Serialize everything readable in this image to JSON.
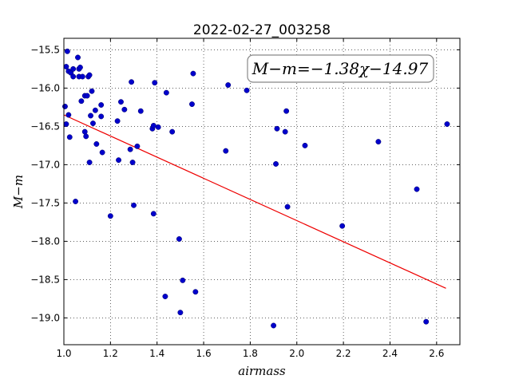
{
  "chart_data": {
    "type": "scatter",
    "title": "2022-02-27_003258",
    "xlabel": "airmass",
    "ylabel": "M−m",
    "xlim": [
      1.0,
      2.7
    ],
    "ylim": [
      -15.35,
      -19.35
    ],
    "y_inverted": true,
    "grid": true,
    "x_ticks": [
      "1.0",
      "1.2",
      "1.4",
      "1.6",
      "1.8",
      "2.0",
      "2.2",
      "2.4",
      "2.6"
    ],
    "y_ticks": [
      "−15.5",
      "−16.0",
      "−16.5",
      "−17.0",
      "−17.5",
      "−18.0",
      "−18.5",
      "−19.0"
    ],
    "annotation": "M−m=−1.38χ−14.97",
    "marker_color": "#0000cc",
    "fit_color": "#ee0000",
    "fit": {
      "slope": -1.38,
      "intercept": -14.97,
      "x_range": [
        1.0,
        2.64
      ]
    },
    "points": [
      {
        "x": 1.005,
        "y": -16.24
      },
      {
        "x": 1.01,
        "y": -16.47
      },
      {
        "x": 1.01,
        "y": -15.72
      },
      {
        "x": 1.015,
        "y": -15.52
      },
      {
        "x": 1.02,
        "y": -16.35
      },
      {
        "x": 1.02,
        "y": -15.78
      },
      {
        "x": 1.025,
        "y": -16.64
      },
      {
        "x": 1.03,
        "y": -15.8
      },
      {
        "x": 1.04,
        "y": -15.75
      },
      {
        "x": 1.04,
        "y": -15.85
      },
      {
        "x": 1.05,
        "y": -17.48
      },
      {
        "x": 1.06,
        "y": -15.6
      },
      {
        "x": 1.065,
        "y": -15.75
      },
      {
        "x": 1.065,
        "y": -15.85
      },
      {
        "x": 1.07,
        "y": -15.73
      },
      {
        "x": 1.075,
        "y": -16.17
      },
      {
        "x": 1.08,
        "y": -15.85
      },
      {
        "x": 1.09,
        "y": -16.1
      },
      {
        "x": 1.09,
        "y": -16.57
      },
      {
        "x": 1.095,
        "y": -16.63
      },
      {
        "x": 1.1,
        "y": -16.1
      },
      {
        "x": 1.105,
        "y": -15.85
      },
      {
        "x": 1.11,
        "y": -15.83
      },
      {
        "x": 1.11,
        "y": -16.97
      },
      {
        "x": 1.115,
        "y": -16.36
      },
      {
        "x": 1.12,
        "y": -16.04
      },
      {
        "x": 1.125,
        "y": -16.46
      },
      {
        "x": 1.135,
        "y": -16.29
      },
      {
        "x": 1.14,
        "y": -16.73
      },
      {
        "x": 1.16,
        "y": -16.22
      },
      {
        "x": 1.16,
        "y": -16.37
      },
      {
        "x": 1.165,
        "y": -16.84
      },
      {
        "x": 1.2,
        "y": -17.67
      },
      {
        "x": 1.23,
        "y": -16.43
      },
      {
        "x": 1.235,
        "y": -16.94
      },
      {
        "x": 1.245,
        "y": -16.18
      },
      {
        "x": 1.26,
        "y": -16.28
      },
      {
        "x": 1.285,
        "y": -16.8
      },
      {
        "x": 1.29,
        "y": -15.92
      },
      {
        "x": 1.295,
        "y": -16.97
      },
      {
        "x": 1.3,
        "y": -17.53
      },
      {
        "x": 1.315,
        "y": -16.76
      },
      {
        "x": 1.33,
        "y": -16.3
      },
      {
        "x": 1.38,
        "y": -16.53
      },
      {
        "x": 1.385,
        "y": -16.49
      },
      {
        "x": 1.385,
        "y": -17.64
      },
      {
        "x": 1.39,
        "y": -15.93
      },
      {
        "x": 1.405,
        "y": -16.51
      },
      {
        "x": 1.435,
        "y": -18.72
      },
      {
        "x": 1.44,
        "y": -16.06
      },
      {
        "x": 1.465,
        "y": -16.57
      },
      {
        "x": 1.495,
        "y": -17.97
      },
      {
        "x": 1.5,
        "y": -18.93
      },
      {
        "x": 1.51,
        "y": -18.51
      },
      {
        "x": 1.55,
        "y": -16.21
      },
      {
        "x": 1.555,
        "y": -15.81
      },
      {
        "x": 1.565,
        "y": -18.66
      },
      {
        "x": 1.695,
        "y": -16.82
      },
      {
        "x": 1.705,
        "y": -15.96
      },
      {
        "x": 1.785,
        "y": -16.03
      },
      {
        "x": 1.9,
        "y": -19.1
      },
      {
        "x": 1.91,
        "y": -16.99
      },
      {
        "x": 1.915,
        "y": -16.53
      },
      {
        "x": 1.95,
        "y": -16.57
      },
      {
        "x": 1.955,
        "y": -16.3
      },
      {
        "x": 1.96,
        "y": -17.55
      },
      {
        "x": 2.035,
        "y": -16.75
      },
      {
        "x": 2.195,
        "y": -17.8
      },
      {
        "x": 2.35,
        "y": -16.7
      },
      {
        "x": 2.515,
        "y": -17.32
      },
      {
        "x": 2.555,
        "y": -19.05
      },
      {
        "x": 2.645,
        "y": -16.47
      }
    ]
  }
}
